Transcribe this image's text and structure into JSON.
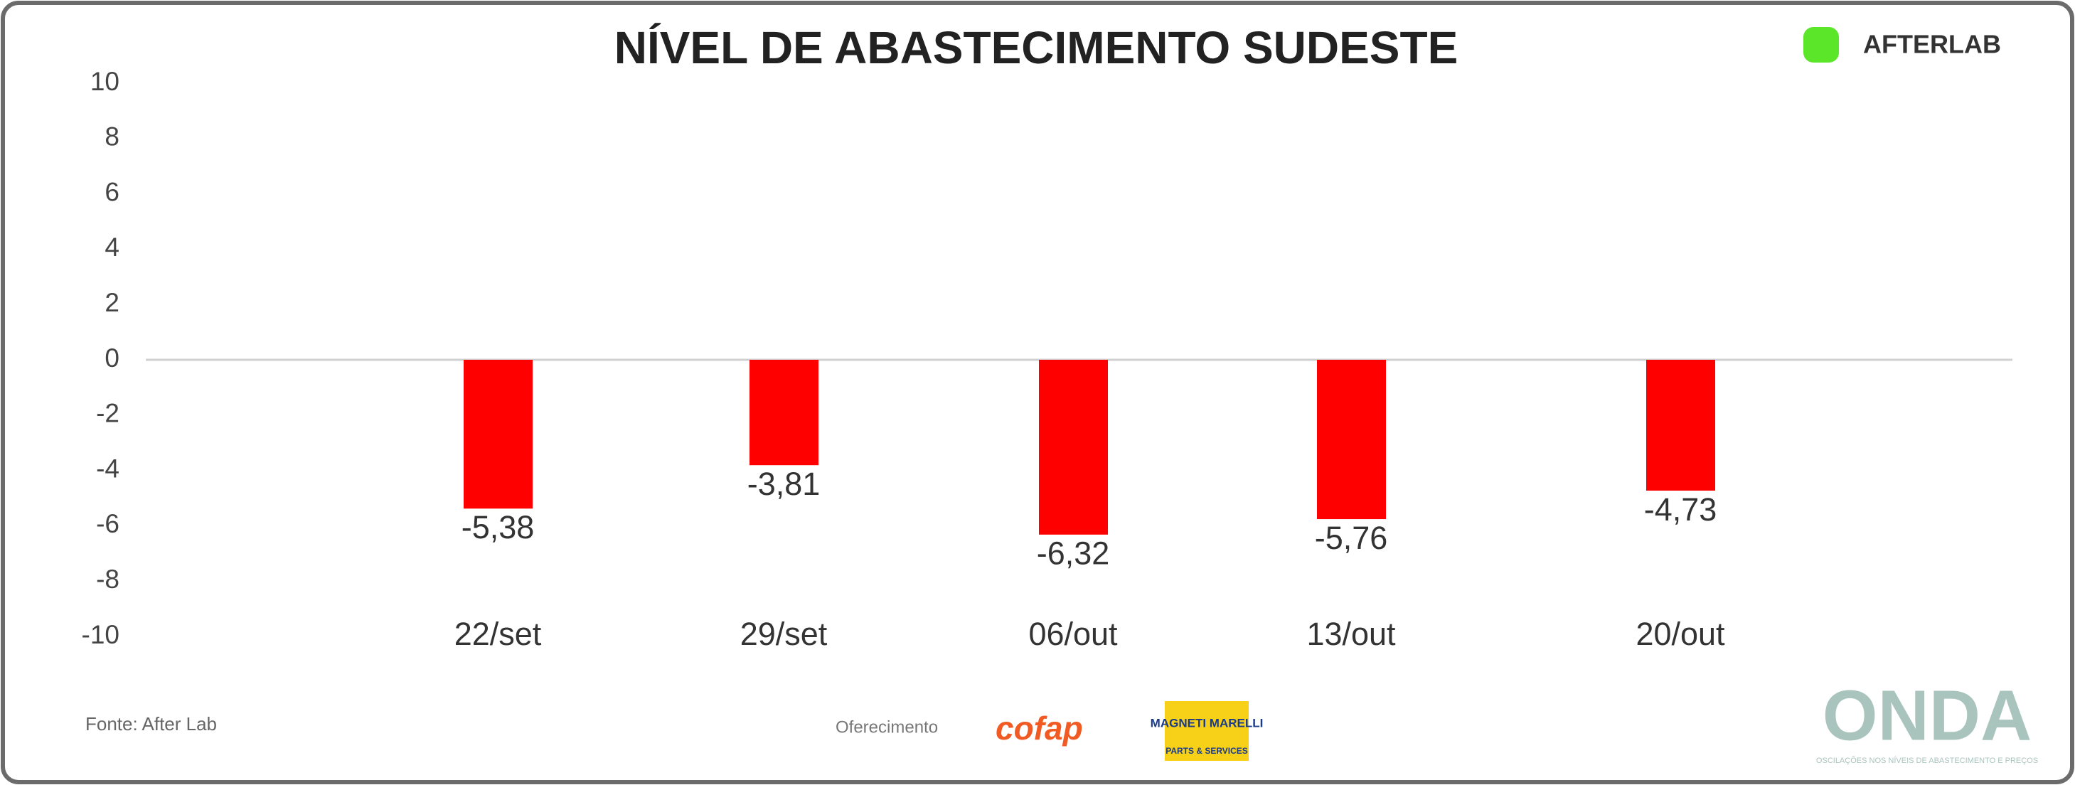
{
  "chart_data": {
    "type": "bar",
    "title": "NÍVEL DE ABASTECIMENTO SUDESTE",
    "categories": [
      "22/set",
      "29/set",
      "06/out",
      "13/out",
      "20/out"
    ],
    "values": [
      -5.38,
      -3.81,
      -6.32,
      -5.76,
      -4.73
    ],
    "value_labels": [
      "-5,38",
      "-3,81",
      "-6,32",
      "-5,76",
      "-4,73"
    ],
    "color": "#ff0000",
    "ylim": [
      -10,
      10
    ],
    "yticks": [
      -10,
      -8,
      -6,
      -4,
      -2,
      0,
      2,
      4,
      6,
      8,
      10
    ]
  },
  "brand": "AFTERLAB",
  "footer": {
    "source": "Fonte: After Lab",
    "sponsor_label": "Oferecimento",
    "sponsor1": "cofap",
    "sponsor2": "MAGNETI MARELLI",
    "sponsor2_sub": "PARTS & SERVICES",
    "mark": "ONDA",
    "mark_sub": "OSCILAÇÕES NOS NÍVEIS DE ABASTECIMENTO E PREÇOS"
  }
}
